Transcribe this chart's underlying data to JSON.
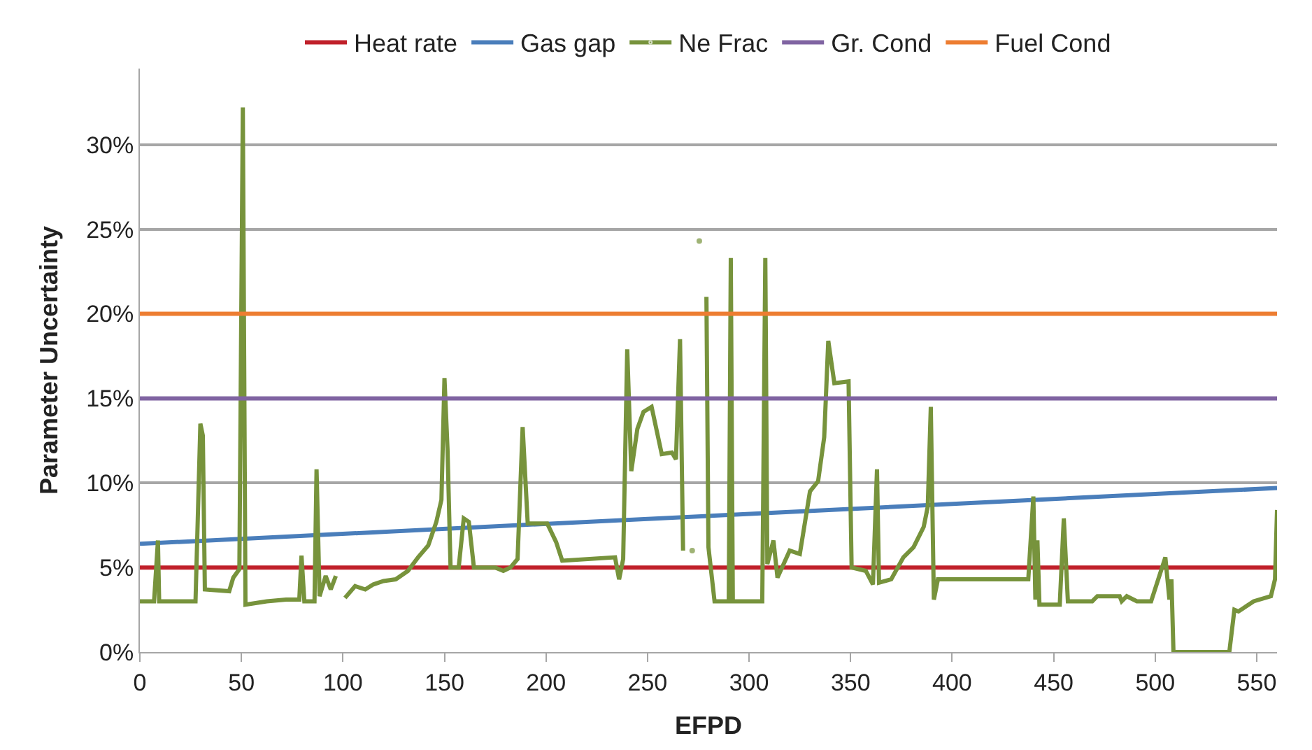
{
  "chart_data": {
    "type": "line",
    "xlabel": "EFPD",
    "ylabel": "Parameter Uncertainty",
    "xlim": [
      0,
      560
    ],
    "xticks": [
      0,
      50,
      100,
      150,
      200,
      250,
      300,
      350,
      400,
      450,
      500,
      550
    ],
    "ylim": [
      0,
      34.5
    ],
    "yticks": [
      {
        "value": 0,
        "label": "0%"
      },
      {
        "value": 5,
        "label": "5%"
      },
      {
        "value": 10,
        "label": "10%"
      },
      {
        "value": 15,
        "label": "15%"
      },
      {
        "value": 20,
        "label": "20%"
      },
      {
        "value": 25,
        "label": "25%"
      },
      {
        "value": 30,
        "label": "30%"
      }
    ],
    "grid": "y",
    "legend": "top",
    "marker": "none",
    "line_style": "solid",
    "series": [
      {
        "name": "Heat rate",
        "color": "#c0202a",
        "x": [
          0,
          560
        ],
        "values": [
          5,
          5
        ]
      },
      {
        "name": "Gas gap",
        "color": "#4a7ebb",
        "x": [
          0,
          560
        ],
        "values": [
          6.4,
          9.7
        ]
      },
      {
        "name": "Ne Frac",
        "color": "#77933c",
        "x": [
          0,
          7,
          8.9,
          9.5,
          27.4,
          29.8,
          31,
          32,
          44,
          46,
          49,
          50.7,
          52,
          62.5,
          72,
          78.5,
          79.6,
          81,
          86,
          87,
          88.5,
          91.5,
          94,
          96.5,
          98.4,
          101,
          106,
          111,
          115,
          120,
          126,
          132,
          137,
          142,
          146,
          148.5,
          150,
          151.5,
          153,
          157,
          159.5,
          162,
          164.5,
          169,
          175,
          179,
          182.5,
          186,
          188.5,
          191,
          200.6,
          205,
          208,
          234,
          236,
          238,
          240,
          242,
          245,
          248,
          252,
          257,
          262,
          264,
          266,
          267.5,
          269.5,
          272,
          273,
          275.5,
          278,
          279,
          280,
          283,
          290,
          291,
          292,
          306.5,
          308,
          309,
          312,
          314,
          320,
          325,
          330,
          334,
          337,
          339,
          342,
          349,
          350.5,
          357.5,
          361,
          363,
          364,
          370,
          376,
          381,
          386,
          388,
          389.5,
          391,
          393,
          437.5,
          440,
          441,
          442,
          443,
          453,
          455,
          457,
          469,
          471.5,
          482.5,
          483.5,
          486,
          491,
          498,
          505,
          507,
          508,
          509,
          536.5,
          539,
          541,
          548.5,
          557,
          559,
          560
        ],
        "values": [
          3.0,
          3.0,
          6.6,
          3.0,
          3.0,
          13.5,
          12.8,
          3.7,
          3.6,
          4.4,
          4.9,
          32.2,
          2.8,
          3.0,
          3.1,
          3.1,
          5.7,
          3.0,
          3.0,
          10.8,
          3.3,
          4.5,
          3.7,
          4.5,
          null,
          3.2,
          3.9,
          3.7,
          4.0,
          4.2,
          4.3,
          4.8,
          5.6,
          6.3,
          7.7,
          9.0,
          16.2,
          12.0,
          5.0,
          5.0,
          7.9,
          7.7,
          5.0,
          5.0,
          5.0,
          4.8,
          5.0,
          5.5,
          13.3,
          7.6,
          7.6,
          6.5,
          5.4,
          5.6,
          4.3,
          5.5,
          17.9,
          10.7,
          13.2,
          14.2,
          14.5,
          11.7,
          11.8,
          11.4,
          18.5,
          6.0,
          null,
          6.0,
          null,
          24.3,
          null,
          21.0,
          6.2,
          3.0,
          3.0,
          23.3,
          3.0,
          3.0,
          23.3,
          5.2,
          6.6,
          4.4,
          6.0,
          5.8,
          9.5,
          10.1,
          12.7,
          18.4,
          15.9,
          16.0,
          5.0,
          4.8,
          4.0,
          10.8,
          4.1,
          4.3,
          5.6,
          6.2,
          7.4,
          8.6,
          14.5,
          3.1,
          4.3,
          4.3,
          9.2,
          3.1,
          6.6,
          2.8,
          2.8,
          7.9,
          3.0,
          3.0,
          3.3,
          3.3,
          3.0,
          3.3,
          3.0,
          3.0,
          5.6,
          3.1,
          4.3,
          0,
          0,
          2.5,
          2.4,
          3.0,
          3.3,
          4.3,
          8.4
        ]
      },
      {
        "name": "Gr. Cond",
        "color": "#8064a2",
        "x": [
          0,
          560
        ],
        "values": [
          15,
          15
        ]
      },
      {
        "name": "Fuel Cond",
        "color": "#ed7d31",
        "x": [
          0,
          560
        ],
        "values": [
          20,
          20
        ]
      }
    ]
  }
}
